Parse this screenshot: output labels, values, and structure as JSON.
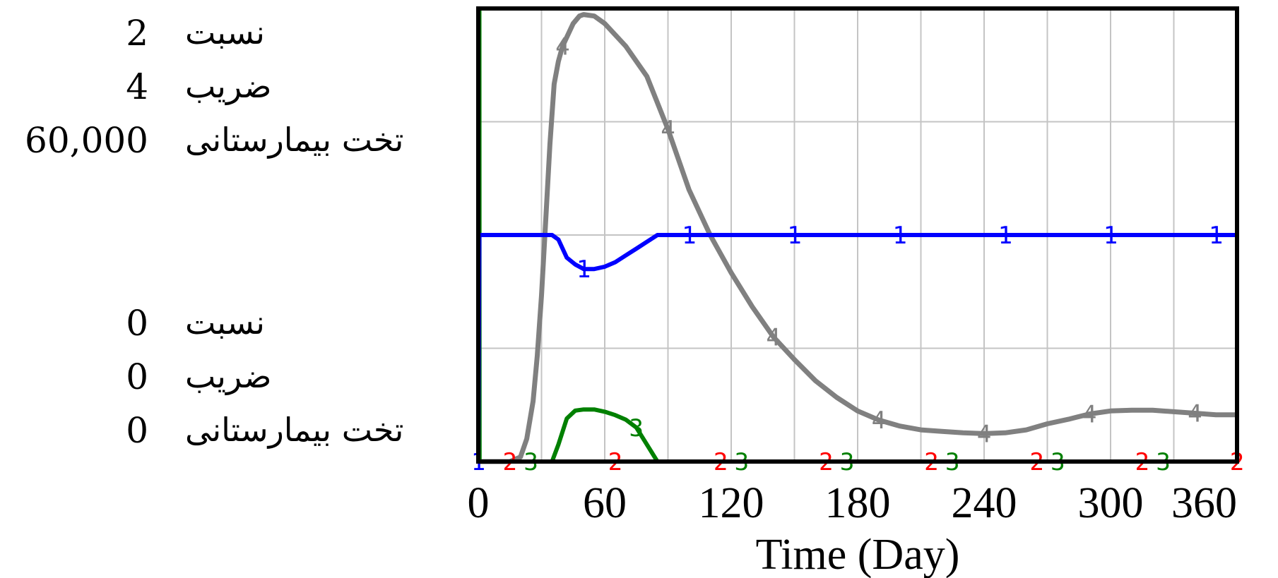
{
  "chart_data": {
    "type": "line",
    "xlabel": "Time (Day)",
    "xlim": [
      0,
      360
    ],
    "x_ticks": [
      "0",
      "60",
      "120",
      "180",
      "240",
      "300",
      "360"
    ],
    "y_scale_top": [
      {
        "label": "نسبت",
        "value": "2"
      },
      {
        "label": "ضریب",
        "value": "4"
      },
      {
        "label": "تخت بیمارستانی",
        "value": "60,000"
      }
    ],
    "y_scale_bottom": [
      {
        "label": "نسبت",
        "value": "0"
      },
      {
        "label": "ضریب",
        "value": "0"
      },
      {
        "label": "تخت بیمارستانی",
        "value": "0"
      }
    ],
    "series": [
      {
        "id": "1",
        "color": "#0000ff",
        "axis_max": 2,
        "x": [
          0,
          0.5,
          35,
          38,
          42,
          46,
          50,
          55,
          60,
          65,
          70,
          75,
          80,
          85,
          90,
          120,
          180,
          240,
          300,
          360
        ],
        "y": [
          0,
          1,
          1,
          0.98,
          0.9,
          0.87,
          0.85,
          0.85,
          0.86,
          0.88,
          0.91,
          0.94,
          0.97,
          1,
          1,
          1,
          1,
          1,
          1,
          1
        ]
      },
      {
        "id": "2",
        "color": "#ff0000",
        "axis_max": 4,
        "x": [
          0,
          60,
          120,
          180,
          240,
          300,
          360
        ],
        "y": [
          0,
          0,
          0,
          0,
          0,
          0,
          0
        ]
      },
      {
        "id": "3",
        "color": "#008000",
        "axis_max": 4,
        "x": [
          0,
          0.5,
          0.6,
          35,
          38,
          42,
          46,
          50,
          55,
          60,
          65,
          70,
          75,
          80,
          85,
          90,
          360
        ],
        "y": [
          4,
          4,
          0,
          0,
          0.15,
          0.38,
          0.45,
          0.46,
          0.46,
          0.44,
          0.41,
          0.37,
          0.3,
          0.15,
          0,
          0,
          0
        ]
      },
      {
        "id": "4",
        "color": "#808080",
        "axis_max": 60000,
        "x": [
          0,
          15,
          20,
          23,
          26,
          28,
          30,
          32,
          34,
          36,
          38,
          40,
          45,
          48,
          50,
          55,
          60,
          70,
          80,
          90,
          100,
          110,
          120,
          130,
          140,
          150,
          160,
          170,
          180,
          190,
          200,
          210,
          220,
          230,
          240,
          250,
          260,
          270,
          280,
          290,
          300,
          310,
          320,
          330,
          340,
          350,
          360
        ],
        "y": [
          0,
          0,
          600,
          3000,
          8000,
          14000,
          22000,
          32000,
          42000,
          50000,
          53000,
          55000,
          58000,
          59000,
          59200,
          59000,
          58000,
          55000,
          51000,
          44000,
          36000,
          30000,
          25000,
          20500,
          16500,
          13500,
          10700,
          8500,
          6700,
          5500,
          4700,
          4200,
          4000,
          3800,
          3700,
          3800,
          4200,
          5000,
          5600,
          6300,
          6700,
          6800,
          6800,
          6600,
          6400,
          6200,
          6200
        ]
      }
    ]
  }
}
